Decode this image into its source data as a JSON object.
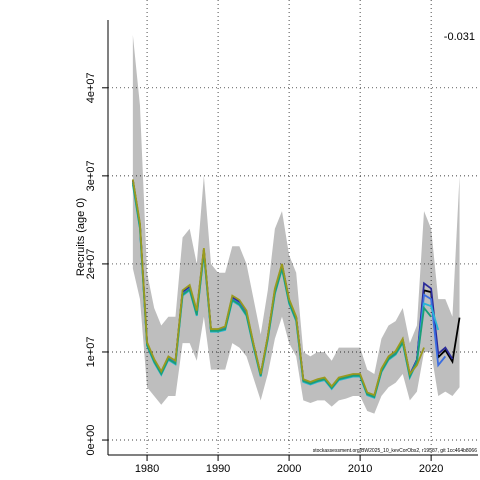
{
  "chart_data": {
    "type": "line",
    "y_label": "Recruits (age 0)",
    "annotation": "-0.031",
    "footer": "stockassessment.org/BW2025_10_kevCorObs2, r19587, git 1cc464b8066",
    "x": [
      1978,
      1979,
      1980,
      1981,
      1982,
      1983,
      1984,
      1985,
      1986,
      1987,
      1988,
      1989,
      1990,
      1991,
      1992,
      1993,
      1994,
      1995,
      1996,
      1997,
      1998,
      1999,
      2000,
      2001,
      2002,
      2003,
      2004,
      2005,
      2006,
      2007,
      2008,
      2009,
      2010,
      2011,
      2012,
      2013,
      2014,
      2015,
      2016,
      2017,
      2018,
      2019,
      2020,
      2021,
      2022,
      2023,
      2024
    ],
    "band_color": "#bebebe",
    "band_upper": [
      46000000.0,
      38000000.0,
      19000000.0,
      15000000.0,
      13000000.0,
      14000000.0,
      14000000.0,
      23000000.0,
      24000000.0,
      20000000.0,
      30000000.0,
      20000000.0,
      19000000.0,
      19000000.0,
      22000000.0,
      22000000.0,
      20000000.0,
      16000000.0,
      12000000.0,
      17000000.0,
      24000000.0,
      26000000.0,
      21000000.0,
      19000000.0,
      10000000.0,
      9500000.0,
      10000000.0,
      10000000.0,
      9000000.0,
      10500000.0,
      10500000.0,
      10500000.0,
      10500000.0,
      8000000.0,
      7500000.0,
      11500000.0,
      13000000.0,
      13500000.0,
      15000000.0,
      11000000.0,
      13000000.0,
      26000000.0,
      24000000.0,
      16000000.0,
      16000000.0,
      14000000.0,
      30000000.0
    ],
    "band_lower": [
      19500000.0,
      16000000.0,
      6000000.0,
      5000000.0,
      4000000.0,
      5000000.0,
      5000000.0,
      11000000.0,
      11000000.0,
      9000000.0,
      14000000.0,
      8000000.0,
      8000000.0,
      8000000.0,
      11000000.0,
      10500000.0,
      9500000.0,
      7000000.0,
      4500000.0,
      7500000.0,
      11500000.0,
      14000000.0,
      11000000.0,
      9500000.0,
      4500000.0,
      4200000.0,
      4500000.0,
      4500000.0,
      3800000.0,
      4500000.0,
      4700000.0,
      5000000.0,
      5000000.0,
      3300000.0,
      3000000.0,
      5000000.0,
      6000000.0,
      6500000.0,
      7500000.0,
      4500000.0,
      5500000.0,
      10000000.0,
      10000000.0,
      5000000.0,
      5500000.0,
      5000000.0,
      6000000.0
    ],
    "series": [
      {
        "color": "#000000",
        "values": [
          29500000.0,
          24400000.0,
          11000000.0,
          9100000.0,
          7700000.0,
          9400000.0,
          8900000.0,
          16800000.0,
          17400000.0,
          14500000.0,
          21600000.0,
          12500000.0,
          12500000.0,
          12800000.0,
          16200000.0,
          15700000.0,
          14500000.0,
          10800000.0,
          7400000.0,
          11700000.0,
          17000000.0,
          19900000.0,
          15900000.0,
          13900000.0,
          6800000.0,
          6500000.0,
          6800000.0,
          7000000.0,
          6000000.0,
          7000000.0,
          7200000.0,
          7400000.0,
          7400000.0,
          5300000.0,
          5000000.0,
          8000000.0,
          9400000.0,
          10000000.0,
          11400000.0,
          7400000.0,
          9100000.0,
          17000000.0,
          16800000.0,
          9400000.0,
          10200000.0,
          8900000.0,
          13900000.0
        ]
      },
      {
        "color": "#2b2b9a",
        "values": [
          29500000.0,
          24400000.0,
          11000000.0,
          9100000.0,
          7700000.0,
          9400000.0,
          8900000.0,
          16800000.0,
          17400000.0,
          14500000.0,
          21600000.0,
          12500000.0,
          12500000.0,
          12800000.0,
          16200000.0,
          15700000.0,
          14500000.0,
          10800000.0,
          7400000.0,
          11700000.0,
          17000000.0,
          19900000.0,
          15900000.0,
          13900000.0,
          6800000.0,
          6500000.0,
          6800000.0,
          7000000.0,
          6000000.0,
          7000000.0,
          7200000.0,
          7400000.0,
          7400000.0,
          5300000.0,
          5000000.0,
          8000000.0,
          9400000.0,
          10000000.0,
          11400000.0,
          7400000.0,
          9100000.0,
          17800000.0,
          17200000.0,
          9800000.0,
          10500000.0,
          9200000.0,
          null
        ]
      },
      {
        "color": "#3c6ee0",
        "values": [
          29300000.0,
          24200000.0,
          10900000.0,
          9000000.0,
          7600000.0,
          9300000.0,
          8800000.0,
          16600000.0,
          17200000.0,
          14300000.0,
          21400000.0,
          12400000.0,
          12400000.0,
          12700000.0,
          16000000.0,
          15500000.0,
          14300000.0,
          10700000.0,
          7300000.0,
          11600000.0,
          16800000.0,
          19700000.0,
          15700000.0,
          13700000.0,
          6700000.0,
          6400000.0,
          6700000.0,
          6900000.0,
          5900000.0,
          6900000.0,
          7100000.0,
          7300000.0,
          7300000.0,
          5200000.0,
          4900000.0,
          7900000.0,
          9300000.0,
          9900000.0,
          11200000.0,
          7300000.0,
          9000000.0,
          16500000.0,
          16000000.0,
          8500000.0,
          9500000.0,
          null,
          null
        ]
      },
      {
        "color": "#29b6d6",
        "values": [
          29000000.0,
          24000000.0,
          10700000.0,
          8800000.0,
          7400000.0,
          9100000.0,
          8600000.0,
          16400000.0,
          17000000.0,
          14100000.0,
          21200000.0,
          12300000.0,
          12300000.0,
          12500000.0,
          15800000.0,
          15300000.0,
          14100000.0,
          10500000.0,
          7200000.0,
          11400000.0,
          16600000.0,
          19400000.0,
          15500000.0,
          13500000.0,
          6600000.0,
          6300000.0,
          6600000.0,
          6800000.0,
          5800000.0,
          6800000.0,
          7000000.0,
          7200000.0,
          7200000.0,
          5100000.0,
          4800000.0,
          7700000.0,
          9100000.0,
          9700000.0,
          11000000.0,
          7100000.0,
          8800000.0,
          15500000.0,
          15200000.0,
          12500000.0,
          null,
          null,
          null
        ]
      },
      {
        "color": "#1b9e77",
        "values": [
          29200000.0,
          24100000.0,
          10800000.0,
          8900000.0,
          7500000.0,
          9200000.0,
          8700000.0,
          16500000.0,
          17100000.0,
          14200000.0,
          21300000.0,
          12400000.0,
          12400000.0,
          12600000.0,
          15900000.0,
          15400000.0,
          14200000.0,
          10600000.0,
          7300000.0,
          11500000.0,
          16700000.0,
          19500000.0,
          15600000.0,
          13600000.0,
          6700000.0,
          6400000.0,
          6700000.0,
          6900000.0,
          5900000.0,
          6900000.0,
          7100000.0,
          7300000.0,
          7300000.0,
          5200000.0,
          4900000.0,
          7800000.0,
          9200000.0,
          9800000.0,
          11100000.0,
          7200000.0,
          8900000.0,
          15000000.0,
          14000000.0,
          null,
          null,
          null,
          null
        ]
      },
      {
        "color": "#9a9a1e",
        "values": [
          29600000.0,
          24600000.0,
          11100000.0,
          9200000.0,
          7800000.0,
          9500000.0,
          9000000.0,
          17000000.0,
          17600000.0,
          14700000.0,
          21800000.0,
          12600000.0,
          12600000.0,
          12900000.0,
          16400000.0,
          15900000.0,
          14700000.0,
          10900000.0,
          7500000.0,
          11800000.0,
          17200000.0,
          20000000.0,
          16000000.0,
          14000000.0,
          6900000.0,
          6600000.0,
          6900000.0,
          7100000.0,
          6100000.0,
          7100000.0,
          7300000.0,
          7500000.0,
          7500000.0,
          5400000.0,
          5100000.0,
          8100000.0,
          9500000.0,
          10100000.0,
          11500000.0,
          7500000.0,
          8500000.0,
          10500000.0,
          null,
          null,
          null,
          null,
          null
        ]
      }
    ],
    "xlim": [
      1974.5,
      2026.6
    ],
    "ylim": [
      -1700000.0,
      47700000.0
    ],
    "xticks": [
      1980,
      1990,
      2000,
      2010,
      2020
    ],
    "yticks": [
      {
        "value": 0,
        "label": "0e+00"
      },
      {
        "value": 10000000,
        "label": "1e+07"
      },
      {
        "value": 20000000,
        "label": "2e+07"
      },
      {
        "value": 30000000,
        "label": "3e+07"
      },
      {
        "value": 40000000,
        "label": "4e+07"
      }
    ],
    "grid": true
  }
}
